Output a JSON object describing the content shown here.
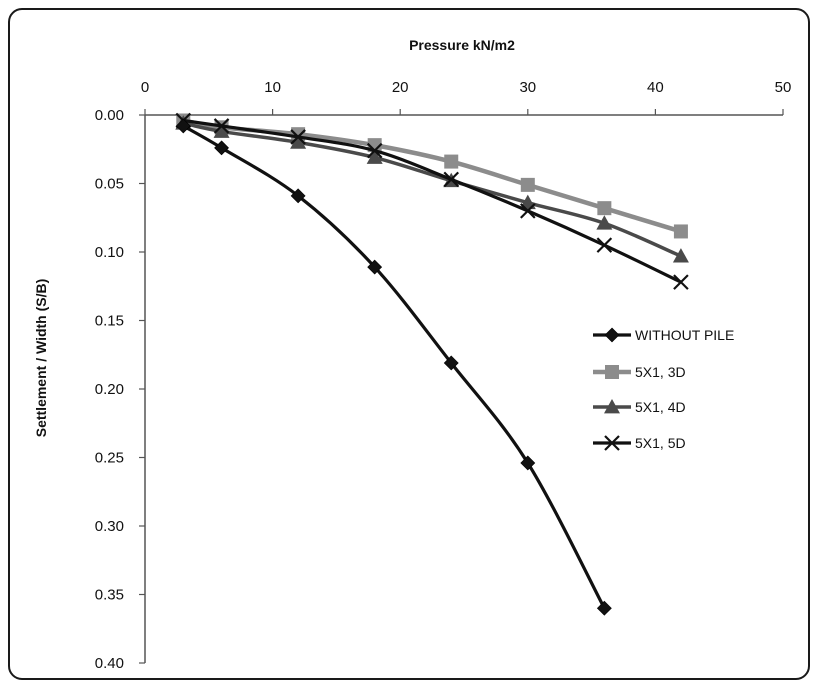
{
  "chart_data": {
    "type": "line",
    "xlabel": "Pressure kN/m2",
    "ylabel": "Settlement / Width (S/B)",
    "xlim": [
      0,
      50
    ],
    "ylim": [
      0,
      0.4
    ],
    "y_inverted": true,
    "x_axis_position": "top",
    "x_ticks": [
      "0",
      "10",
      "20",
      "30",
      "40",
      "50"
    ],
    "y_ticks": [
      "0.00",
      "0.05",
      "0.10",
      "0.15",
      "0.20",
      "0.25",
      "0.30",
      "0.35",
      "0.40"
    ],
    "grid": false,
    "legend_position": "right-middle",
    "series": [
      {
        "name": "WITHOUT PILE",
        "marker": "diamond",
        "color": "#111111",
        "x": [
          3,
          6,
          12,
          18,
          24,
          30,
          36
        ],
        "y": [
          0.008,
          0.024,
          0.059,
          0.111,
          0.181,
          0.254,
          0.36
        ]
      },
      {
        "name": "5X1, 3D",
        "marker": "square",
        "color": "#8c8c8c",
        "x": [
          3,
          6,
          12,
          18,
          24,
          30,
          36,
          42
        ],
        "y": [
          0.004,
          0.009,
          0.014,
          0.022,
          0.034,
          0.051,
          0.068,
          0.085
        ]
      },
      {
        "name": "5X1, 4D",
        "marker": "triangle",
        "color": "#4a4a4a",
        "x": [
          3,
          6,
          12,
          18,
          24,
          30,
          36,
          42
        ],
        "y": [
          0.006,
          0.012,
          0.02,
          0.031,
          0.048,
          0.064,
          0.079,
          0.103
        ]
      },
      {
        "name": "5X1, 5D",
        "marker": "x",
        "color": "#111111",
        "x": [
          3,
          6,
          12,
          18,
          24,
          30,
          36,
          42
        ],
        "y": [
          0.004,
          0.008,
          0.016,
          0.026,
          0.047,
          0.07,
          0.095,
          0.122
        ]
      }
    ]
  }
}
